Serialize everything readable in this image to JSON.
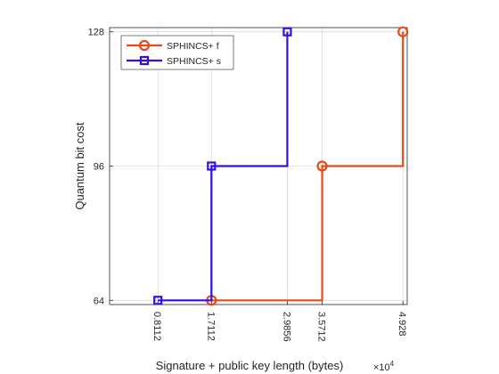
{
  "chart_data": {
    "type": "line",
    "title": "",
    "xlabel": "Signature + public key length (bytes)",
    "x_exponent_base": "×10",
    "x_exponent_power": "4",
    "ylabel": "Quantum bit cost",
    "x_tick_values": [
      0.8112,
      1.7112,
      2.9856,
      3.5712,
      4.928
    ],
    "x_tick_labels": [
      "0.8112",
      "1.7112",
      "2.9856",
      "3.5712",
      "4.928"
    ],
    "y_tick_values": [
      64,
      96,
      128
    ],
    "y_tick_labels": [
      "64",
      "96",
      "128"
    ],
    "xlim": [
      0,
      5
    ],
    "ylim": [
      63,
      129
    ],
    "grid": true,
    "legend_position": "top-left",
    "series": [
      {
        "name": "SPHINCS+ f",
        "color": "#e64a19",
        "marker": "circle",
        "x": [
          1.7112,
          3.5712,
          4.928
        ],
        "y": [
          64,
          96,
          128
        ],
        "step_path": [
          [
            1.7112,
            64
          ],
          [
            3.5712,
            64
          ],
          [
            3.5712,
            96
          ],
          [
            4.928,
            96
          ],
          [
            4.928,
            128
          ]
        ]
      },
      {
        "name": "SPHINCS+ s",
        "color": "#2f10e6",
        "marker": "square",
        "x": [
          0.8112,
          1.7112,
          2.9856
        ],
        "y": [
          64,
          96,
          128
        ],
        "step_path": [
          [
            0.8112,
            64
          ],
          [
            1.7112,
            64
          ],
          [
            1.7112,
            96
          ],
          [
            2.9856,
            96
          ],
          [
            2.9856,
            128
          ]
        ]
      }
    ]
  }
}
